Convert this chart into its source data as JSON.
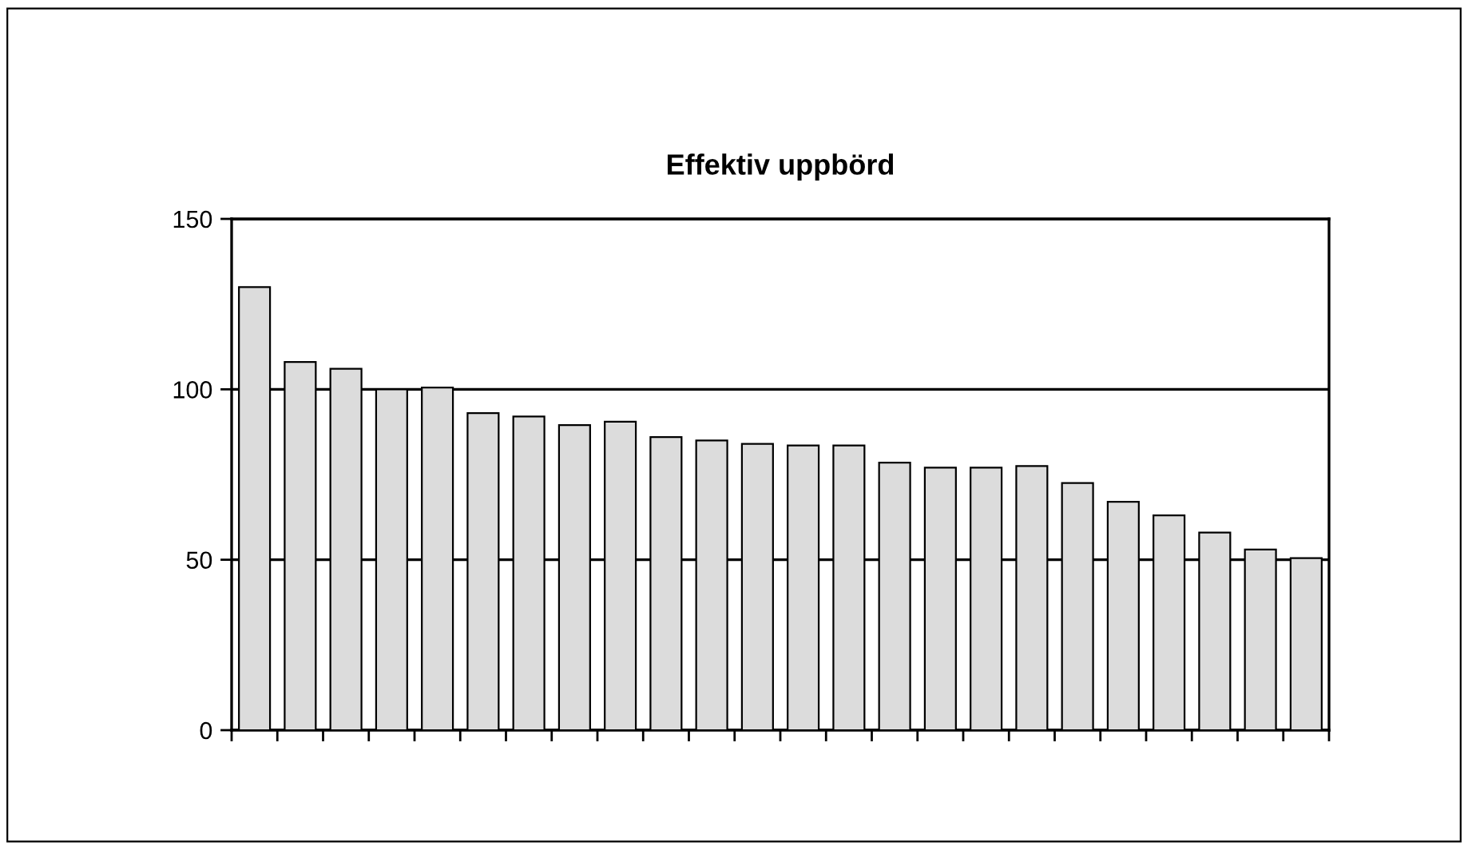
{
  "chart_data": {
    "type": "bar",
    "title": "Effektiv uppbörd",
    "categories": [
      null,
      null,
      null,
      null,
      null,
      null,
      null,
      null,
      null,
      null,
      null,
      null,
      null,
      null,
      null,
      null,
      null,
      null,
      null,
      null,
      null,
      null,
      null,
      null
    ],
    "values": [
      130,
      108,
      106,
      100,
      100.5,
      93,
      92,
      89.5,
      90.5,
      86,
      85,
      84,
      83.5,
      83.5,
      78.5,
      77,
      77,
      77.5,
      72.5,
      67,
      63,
      58,
      53,
      50.5
    ],
    "color": "#dcdcdc",
    "ylim": [
      0,
      150
    ],
    "yticks": [
      0,
      50,
      100,
      150
    ],
    "grid": "y"
  }
}
